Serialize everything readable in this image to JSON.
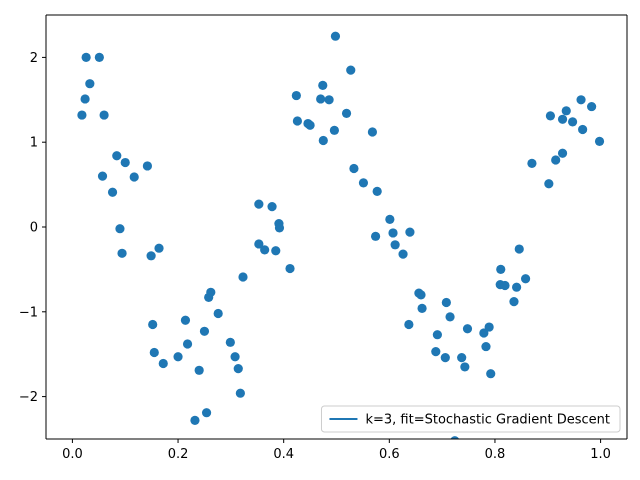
{
  "chart_data": {
    "type": "scatter",
    "title": "",
    "xlabel": "",
    "ylabel": "",
    "xlim": [
      -0.05,
      1.05
    ],
    "ylim": [
      -2.5,
      2.5
    ],
    "xticks": [
      0.0,
      0.2,
      0.4,
      0.6,
      0.8,
      1.0
    ],
    "xtick_labels": [
      "0.0",
      "0.2",
      "0.4",
      "0.6",
      "0.8",
      "1.0"
    ],
    "yticks": [
      -2,
      -1,
      0,
      1,
      2
    ],
    "ytick_labels": [
      "−2",
      "−1",
      "0",
      "1",
      "2"
    ],
    "grid": false,
    "legend": {
      "position": "lower-right",
      "entries": [
        "k=3, fit=Stochastic Gradient Descent"
      ]
    },
    "colors": {
      "points": "#1f77b4",
      "fit_line": "#1f77b4"
    },
    "points": [
      [
        0.018,
        1.32
      ],
      [
        0.024,
        1.51
      ],
      [
        0.026,
        2.0
      ],
      [
        0.033,
        1.69
      ],
      [
        0.051,
        2.0
      ],
      [
        0.06,
        1.32
      ],
      [
        0.057,
        0.6
      ],
      [
        0.076,
        0.41
      ],
      [
        0.084,
        0.84
      ],
      [
        0.09,
        -0.02
      ],
      [
        0.094,
        -0.31
      ],
      [
        0.1,
        0.76
      ],
      [
        0.117,
        0.59
      ],
      [
        0.142,
        0.72
      ],
      [
        0.149,
        -0.34
      ],
      [
        0.152,
        -1.15
      ],
      [
        0.155,
        -1.48
      ],
      [
        0.164,
        -0.25
      ],
      [
        0.172,
        -1.61
      ],
      [
        0.2,
        -1.53
      ],
      [
        0.214,
        -1.1
      ],
      [
        0.218,
        -1.38
      ],
      [
        0.232,
        -2.28
      ],
      [
        0.24,
        -1.69
      ],
      [
        0.25,
        -1.23
      ],
      [
        0.254,
        -2.19
      ],
      [
        0.258,
        -0.83
      ],
      [
        0.262,
        -0.77
      ],
      [
        0.276,
        -1.02
      ],
      [
        0.299,
        -1.36
      ],
      [
        0.308,
        -1.53
      ],
      [
        0.314,
        -1.67
      ],
      [
        0.318,
        -1.96
      ],
      [
        0.323,
        -0.59
      ],
      [
        0.353,
        0.27
      ],
      [
        0.353,
        -0.2
      ],
      [
        0.364,
        -0.27
      ],
      [
        0.378,
        0.24
      ],
      [
        0.385,
        -0.28
      ],
      [
        0.391,
        0.04
      ],
      [
        0.392,
        -0.01
      ],
      [
        0.412,
        -0.49
      ],
      [
        0.424,
        1.55
      ],
      [
        0.426,
        1.25
      ],
      [
        0.446,
        1.22
      ],
      [
        0.45,
        1.2
      ],
      [
        0.47,
        1.51
      ],
      [
        0.474,
        1.67
      ],
      [
        0.475,
        1.02
      ],
      [
        0.486,
        1.5
      ],
      [
        0.496,
        1.14
      ],
      [
        0.498,
        2.25
      ],
      [
        0.519,
        1.34
      ],
      [
        0.527,
        1.85
      ],
      [
        0.533,
        0.69
      ],
      [
        0.551,
        0.52
      ],
      [
        0.568,
        1.12
      ],
      [
        0.574,
        -0.11
      ],
      [
        0.577,
        0.42
      ],
      [
        0.601,
        0.09
      ],
      [
        0.607,
        -0.07
      ],
      [
        0.611,
        -0.21
      ],
      [
        0.626,
        -0.32
      ],
      [
        0.637,
        -1.15
      ],
      [
        0.639,
        -0.06
      ],
      [
        0.656,
        -0.78
      ],
      [
        0.66,
        -0.8
      ],
      [
        0.662,
        -0.96
      ],
      [
        0.688,
        -1.47
      ],
      [
        0.691,
        -1.27
      ],
      [
        0.706,
        -1.54
      ],
      [
        0.708,
        -0.89
      ],
      [
        0.715,
        -1.06
      ],
      [
        0.724,
        -2.52
      ],
      [
        0.737,
        -1.54
      ],
      [
        0.743,
        -1.65
      ],
      [
        0.748,
        -1.2
      ],
      [
        0.779,
        -1.25
      ],
      [
        0.783,
        -1.41
      ],
      [
        0.789,
        -1.18
      ],
      [
        0.792,
        -1.73
      ],
      [
        0.81,
        -0.68
      ],
      [
        0.811,
        -0.5
      ],
      [
        0.819,
        -0.69
      ],
      [
        0.836,
        -0.88
      ],
      [
        0.841,
        -0.71
      ],
      [
        0.846,
        -0.26
      ],
      [
        0.858,
        -0.61
      ],
      [
        0.87,
        0.75
      ],
      [
        0.902,
        0.51
      ],
      [
        0.905,
        1.31
      ],
      [
        0.915,
        0.79
      ],
      [
        0.928,
        0.87
      ],
      [
        0.928,
        1.27
      ],
      [
        0.935,
        1.37
      ],
      [
        0.947,
        1.24
      ],
      [
        0.963,
        1.5
      ],
      [
        0.966,
        1.15
      ],
      [
        0.983,
        1.42
      ],
      [
        0.998,
        1.01
      ]
    ]
  }
}
